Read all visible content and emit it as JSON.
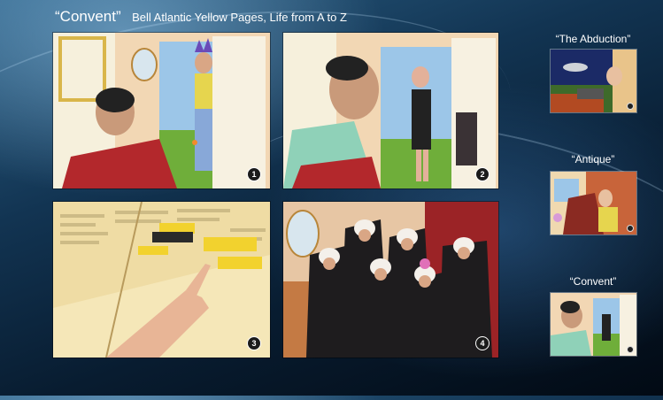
{
  "header": {
    "title": "“Convent”",
    "subtitle": "Bell Atlantic Yellow Pages, Life from A to Z"
  },
  "panels": [
    {
      "number": "1"
    },
    {
      "number": "2"
    },
    {
      "number": "3"
    },
    {
      "number": "4"
    }
  ],
  "sidebar": {
    "items": [
      {
        "label": "“The Abduction”"
      },
      {
        "label": "“Antique”"
      },
      {
        "label": "“Convent”"
      }
    ]
  },
  "colors": {
    "wall": "#f2d7b4",
    "sky": "#9cc6e8",
    "grass": "#6fae3a",
    "door": "#f7f1e1",
    "chair": "#b3282c",
    "page": "#f5e7b8",
    "highlight": "#f2d22e",
    "curtain": "#9b2326",
    "habit": "#1e1c1e"
  }
}
